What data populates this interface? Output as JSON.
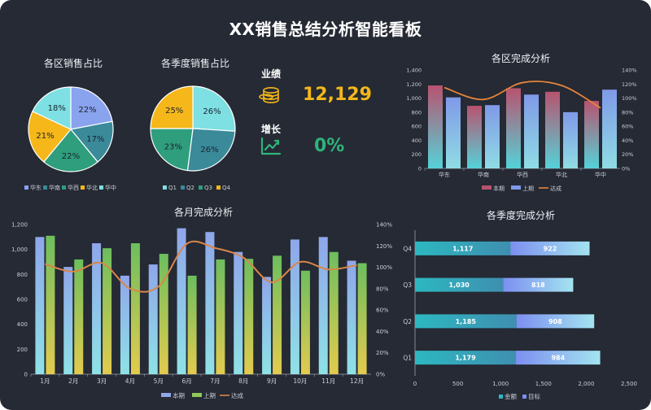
{
  "page_title": "XX销售总结分析智能看板",
  "kpis": {
    "performance": {
      "label": "业绩",
      "value": "12,129",
      "color": "#f5b719"
    },
    "growth": {
      "label": "增长",
      "value": "0%",
      "color": "#2fb37a"
    }
  },
  "chart_data": [
    {
      "id": "region_share",
      "type": "pie",
      "title": "各区销售占比",
      "categories": [
        "华东",
        "华南",
        "华西",
        "华北",
        "华中"
      ],
      "values": [
        22,
        17,
        22,
        21,
        18
      ],
      "labels": [
        "22%",
        "17%",
        "22%",
        "21%",
        "18%"
      ],
      "legend": [
        "华东",
        "华南",
        "华西",
        "华北",
        "华中"
      ],
      "colors": [
        "#8aa3ee",
        "#3a8a9a",
        "#2e9e7c",
        "#f5b719",
        "#7ee0e2"
      ],
      "legend_position": "bottom"
    },
    {
      "id": "quarter_share",
      "type": "pie",
      "title": "各季度销售占比",
      "categories": [
        "Q1",
        "Q2",
        "Q3",
        "Q4"
      ],
      "values": [
        26,
        26,
        23,
        25
      ],
      "labels": [
        "26%",
        "26%",
        "23%",
        "25%"
      ],
      "legend": [
        "Q1",
        "Q2",
        "Q3",
        "Q4"
      ],
      "colors": [
        "#7ee0e2",
        "#3a8a9a",
        "#2e9e7c",
        "#f5b719"
      ],
      "legend_position": "bottom"
    },
    {
      "id": "region_completion",
      "type": "bar",
      "title": "各区完成分析",
      "categories": [
        "华东",
        "华南",
        "华西",
        "华北",
        "华中"
      ],
      "series": [
        {
          "name": "本期",
          "values": [
            1180,
            890,
            1140,
            1090,
            960
          ]
        },
        {
          "name": "上期",
          "values": [
            1010,
            900,
            1050,
            800,
            1120
          ]
        },
        {
          "name": "达成",
          "type": "line",
          "axis": "right",
          "values": [
            1.15,
            0.98,
            1.22,
            1.18,
            0.86
          ]
        }
      ],
      "y_ticks": [
        "0",
        "200",
        "400",
        "600",
        "800",
        "1,000",
        "1,200",
        "1,400"
      ],
      "y2_ticks": [
        "0%",
        "20%",
        "40%",
        "60%",
        "80%",
        "100%",
        "120%",
        "140%"
      ],
      "ylim": [
        0,
        1400
      ],
      "y2lim": [
        0,
        1.4
      ],
      "legend": [
        "本期",
        "上期",
        "达成"
      ],
      "legend_position": "bottom"
    },
    {
      "id": "month_completion",
      "type": "bar",
      "title": "各月完成分析",
      "categories": [
        "1月",
        "2月",
        "3月",
        "4月",
        "5月",
        "6月",
        "7月",
        "8月",
        "9月",
        "10月",
        "11月",
        "12月"
      ],
      "series": [
        {
          "name": "本期",
          "values": [
            1100,
            860,
            1050,
            790,
            880,
            1170,
            1140,
            980,
            780,
            1080,
            1100,
            910
          ]
        },
        {
          "name": "上期",
          "values": [
            1110,
            920,
            1010,
            1050,
            965,
            790,
            920,
            925,
            950,
            830,
            980,
            890
          ]
        },
        {
          "name": "达成",
          "type": "line",
          "axis": "right",
          "values": [
            1.03,
            0.96,
            1.04,
            0.8,
            0.82,
            1.22,
            1.18,
            1.09,
            0.86,
            1.05,
            0.98,
            1.02
          ]
        }
      ],
      "y_ticks": [
        "0",
        "200",
        "400",
        "600",
        "800",
        "1,000",
        "1,200"
      ],
      "y2_ticks": [
        "0%",
        "20%",
        "40%",
        "60%",
        "80%",
        "100%",
        "120%",
        "140%"
      ],
      "ylim": [
        0,
        1200
      ],
      "y2lim": [
        0,
        1.4
      ],
      "legend": [
        "本期",
        "上期",
        "达成"
      ],
      "legend_position": "bottom"
    },
    {
      "id": "quarter_completion",
      "type": "bar",
      "orientation": "horizontal",
      "stacked": true,
      "title": "各季度完成分析",
      "categories": [
        "Q1",
        "Q2",
        "Q3",
        "Q4"
      ],
      "series": [
        {
          "name": "金额",
          "values": [
            1179,
            1185,
            1030,
            1117
          ],
          "labels": [
            "1,179",
            "1,185",
            "1,030",
            "1,117"
          ]
        },
        {
          "name": "目标",
          "values": [
            984,
            908,
            818,
            922
          ],
          "labels": [
            "984",
            "908",
            "818",
            "922"
          ]
        }
      ],
      "x_ticks": [
        "0",
        "500",
        "1,000",
        "1,500",
        "2,000",
        "2,500"
      ],
      "xlim": [
        0,
        2500
      ],
      "legend": [
        "金额",
        "目标"
      ],
      "legend_position": "bottom"
    }
  ]
}
